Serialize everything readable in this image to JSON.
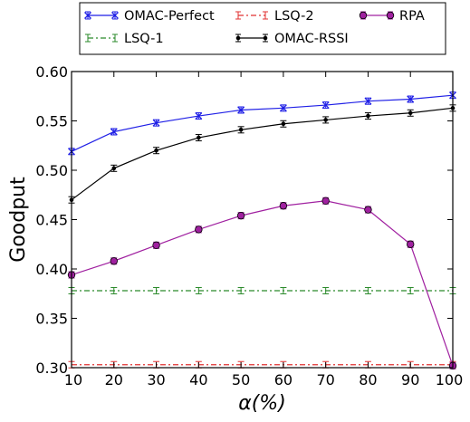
{
  "chart_data": {
    "type": "line",
    "xlabel": "α(%)",
    "ylabel": "Goodput",
    "xlim": [
      10,
      100
    ],
    "ylim": [
      0.3,
      0.6
    ],
    "x": [
      10,
      20,
      30,
      40,
      50,
      60,
      70,
      80,
      90,
      100
    ],
    "xticks": [
      "10",
      "20",
      "30",
      "40",
      "50",
      "60",
      "70",
      "80",
      "90",
      "100"
    ],
    "yticks": [
      "0.30",
      "0.35",
      "0.40",
      "0.45",
      "0.50",
      "0.55",
      "0.60"
    ],
    "grid": false,
    "legend_position": "top, above plot",
    "series": [
      {
        "name": "OMAC-Perfect",
        "color": "#1f1fe6",
        "marker": "x",
        "line_style": "solid",
        "values": [
          0.519,
          0.539,
          0.548,
          0.555,
          0.561,
          0.563,
          0.566,
          0.57,
          0.572,
          0.576
        ]
      },
      {
        "name": "LSQ-1",
        "color": "#2a8a2a",
        "marker": "none",
        "line_style": "dash-dot",
        "values": [
          0.378,
          0.378,
          0.378,
          0.378,
          0.378,
          0.378,
          0.378,
          0.378,
          0.378,
          0.378
        ]
      },
      {
        "name": "LSQ-2",
        "color": "#e03030",
        "marker": "none",
        "line_style": "dash-dot",
        "values": [
          0.303,
          0.303,
          0.303,
          0.303,
          0.303,
          0.303,
          0.303,
          0.303,
          0.303,
          0.303
        ]
      },
      {
        "name": "OMAC-RSSI",
        "color": "#000000",
        "marker": "dot",
        "line_style": "solid",
        "values": [
          0.47,
          0.502,
          0.52,
          0.533,
          0.541,
          0.547,
          0.551,
          0.555,
          0.558,
          0.563
        ]
      },
      {
        "name": "RPA",
        "color": "#a020a0",
        "marker": "circle",
        "line_style": "solid",
        "values": [
          0.394,
          0.408,
          0.424,
          0.44,
          0.454,
          0.464,
          0.469,
          0.46,
          0.425,
          0.302
        ]
      }
    ]
  }
}
